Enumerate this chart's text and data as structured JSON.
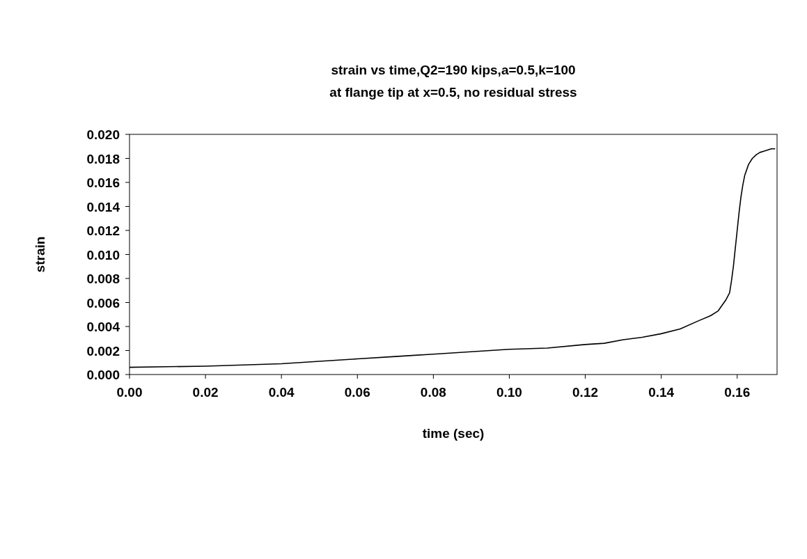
{
  "chart_data": {
    "type": "line",
    "title": "strain vs time,Q2=190 kips,a=0.5,k=100",
    "subtitle": "at flange tip at x=0.5, no residual stress",
    "xlabel": "time (sec)",
    "ylabel": "strain",
    "xlim": [
      0,
      0.1705
    ],
    "ylim": [
      0,
      0.02
    ],
    "xticks": [
      {
        "value": 0,
        "label": "0.00"
      },
      0.02,
      0.04,
      0.06,
      0.08,
      {
        "value": 0.1,
        "label": "0.10"
      },
      0.12,
      0.14,
      0.16
    ],
    "yticks": [
      {
        "value": 0,
        "label": "0.000"
      },
      0.002,
      0.004,
      0.006,
      0.008,
      {
        "value": 0.01,
        "label": "0.010"
      },
      0.012,
      0.014,
      0.016,
      0.018,
      {
        "value": 0.02,
        "label": "0.020"
      }
    ],
    "grid": false,
    "marker": "none",
    "line_style": "solid",
    "series": [
      {
        "color": "#000000",
        "x": [
          0,
          0.01,
          0.02,
          0.03,
          0.04,
          0.05,
          0.06,
          0.07,
          0.08,
          0.09,
          0.1,
          0.11,
          0.12,
          0.125,
          0.13,
          0.135,
          0.14,
          0.145,
          0.15,
          0.153,
          0.155,
          0.157,
          0.158,
          0.1585,
          0.159,
          0.1595,
          0.16,
          0.1605,
          0.161,
          0.1615,
          0.162,
          0.163,
          0.164,
          0.165,
          0.166,
          0.167,
          0.168,
          0.169,
          0.17
        ],
        "values": [
          0.0006,
          0.00065,
          0.0007,
          0.0008,
          0.0009,
          0.0011,
          0.0013,
          0.0015,
          0.0017,
          0.0019,
          0.0021,
          0.0022,
          0.0025,
          0.0026,
          0.0029,
          0.0031,
          0.0034,
          0.0038,
          0.0045,
          0.0049,
          0.0053,
          0.0062,
          0.0068,
          0.0078,
          0.009,
          0.0105,
          0.012,
          0.0135,
          0.0148,
          0.0158,
          0.0166,
          0.0175,
          0.018,
          0.0183,
          0.0185,
          0.0186,
          0.0187,
          0.0188,
          0.0188
        ]
      }
    ]
  }
}
